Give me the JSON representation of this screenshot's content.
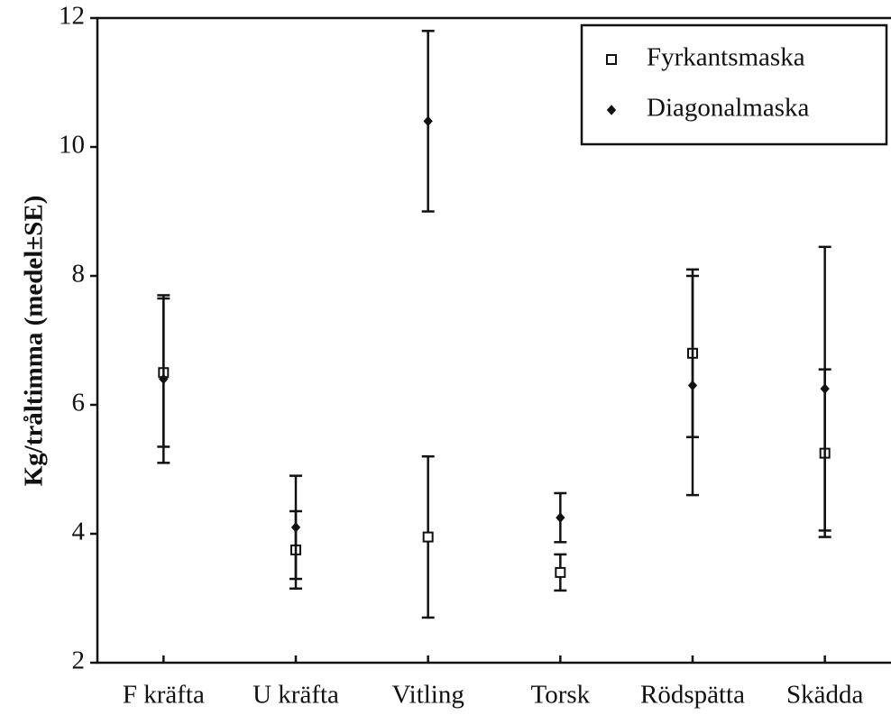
{
  "chart_data": {
    "type": "errorbar",
    "y_label": "Kg/tråltimma (medel±SE)",
    "categories": [
      "F kräfta",
      "U kräfta",
      "Vitling",
      "Torsk",
      "Rödspätta",
      "Skädda"
    ],
    "series": [
      {
        "name": "Fyrkantsmaska",
        "marker": "square",
        "color": "#111111",
        "values": [
          6.5,
          3.75,
          3.95,
          3.4,
          6.8,
          5.25
        ],
        "errors": [
          1.15,
          0.6,
          1.25,
          0.28,
          1.3,
          1.3
        ]
      },
      {
        "name": "Diagonalmaska",
        "marker": "diamond",
        "color": "#111111",
        "values": [
          6.4,
          4.1,
          10.4,
          4.25,
          6.3,
          6.25
        ],
        "errors": [
          1.3,
          0.8,
          1.4,
          0.38,
          1.7,
          2.2
        ]
      }
    ],
    "ylim": [
      2,
      12
    ],
    "yticks": [
      2,
      4,
      6,
      8,
      10,
      12
    ],
    "legend": "upper right"
  }
}
